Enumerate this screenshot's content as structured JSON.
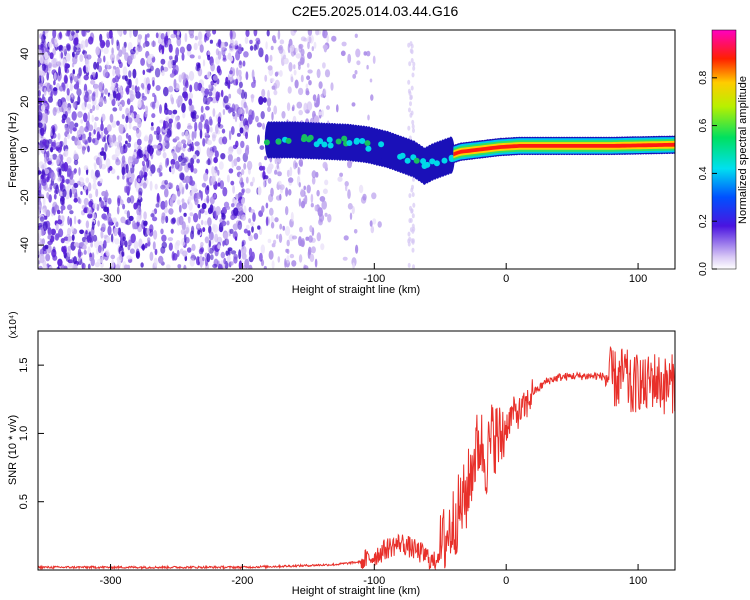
{
  "title": "C2E5.2025.014.03.44.G16",
  "chart_data": [
    {
      "type": "heatmap",
      "xlabel": "Height of straight line (km)",
      "ylabel": "Frequency (Hz)",
      "xlim": [
        -355,
        128
      ],
      "ylim": [
        -50,
        50
      ],
      "x_ticks": [
        -300,
        -200,
        -100,
        0,
        100
      ],
      "y_ticks": [
        -40,
        -20,
        0,
        20,
        40
      ],
      "colorbar": {
        "label": "Normalized spectral amplitude",
        "range": [
          0.0,
          1.0
        ],
        "ticks": [
          "0.0",
          "0.2",
          "0.4",
          "0.6",
          "0.8"
        ]
      },
      "ridge": {
        "x": [
          -180,
          -160,
          -140,
          -120,
          -105,
          -90,
          -80,
          -70,
          -62,
          -55,
          -45,
          -35,
          -20,
          -5,
          10,
          40,
          80,
          128
        ],
        "freq_hz": [
          4,
          4,
          3.5,
          3,
          2,
          0,
          -2,
          -4,
          -7,
          -5,
          -3,
          -1,
          0,
          1,
          1.5,
          1.5,
          1.5,
          2
        ]
      }
    },
    {
      "type": "line",
      "xlabel": "Height of straight line (km)",
      "ylabel": "SNR (10 * v/v)",
      "y_multiplier": "(x10⁴)",
      "xlim": [
        -355,
        128
      ],
      "ylim": [
        0,
        1.75
      ],
      "x_ticks": [
        -300,
        -200,
        -100,
        0,
        100
      ],
      "y_ticks": [
        0.5,
        1.0,
        1.5
      ],
      "series": [
        {
          "color": "#e8302a",
          "x": [
            -355,
            -300,
            -250,
            -200,
            -160,
            -130,
            -110,
            -100,
            -90,
            -80,
            -70,
            -60,
            -55,
            -50,
            -40,
            -30,
            -25,
            -20,
            -15,
            -10,
            -5,
            0,
            5,
            10,
            15,
            20,
            25,
            30,
            40,
            50,
            60,
            70,
            80,
            85,
            90,
            95,
            100,
            105,
            110,
            115,
            120,
            128
          ],
          "y": [
            0.02,
            0.02,
            0.02,
            0.02,
            0.03,
            0.04,
            0.06,
            0.1,
            0.16,
            0.2,
            0.15,
            0.1,
            0.05,
            0.15,
            0.35,
            0.55,
            0.8,
            0.95,
            0.8,
            1.0,
            0.95,
            1.05,
            1.15,
            1.15,
            1.2,
            1.3,
            1.33,
            1.38,
            1.41,
            1.42,
            1.42,
            1.42,
            1.41,
            1.38,
            1.45,
            1.3,
            1.4,
            1.32,
            1.4,
            1.38,
            1.35,
            1.37
          ]
        }
      ]
    }
  ]
}
